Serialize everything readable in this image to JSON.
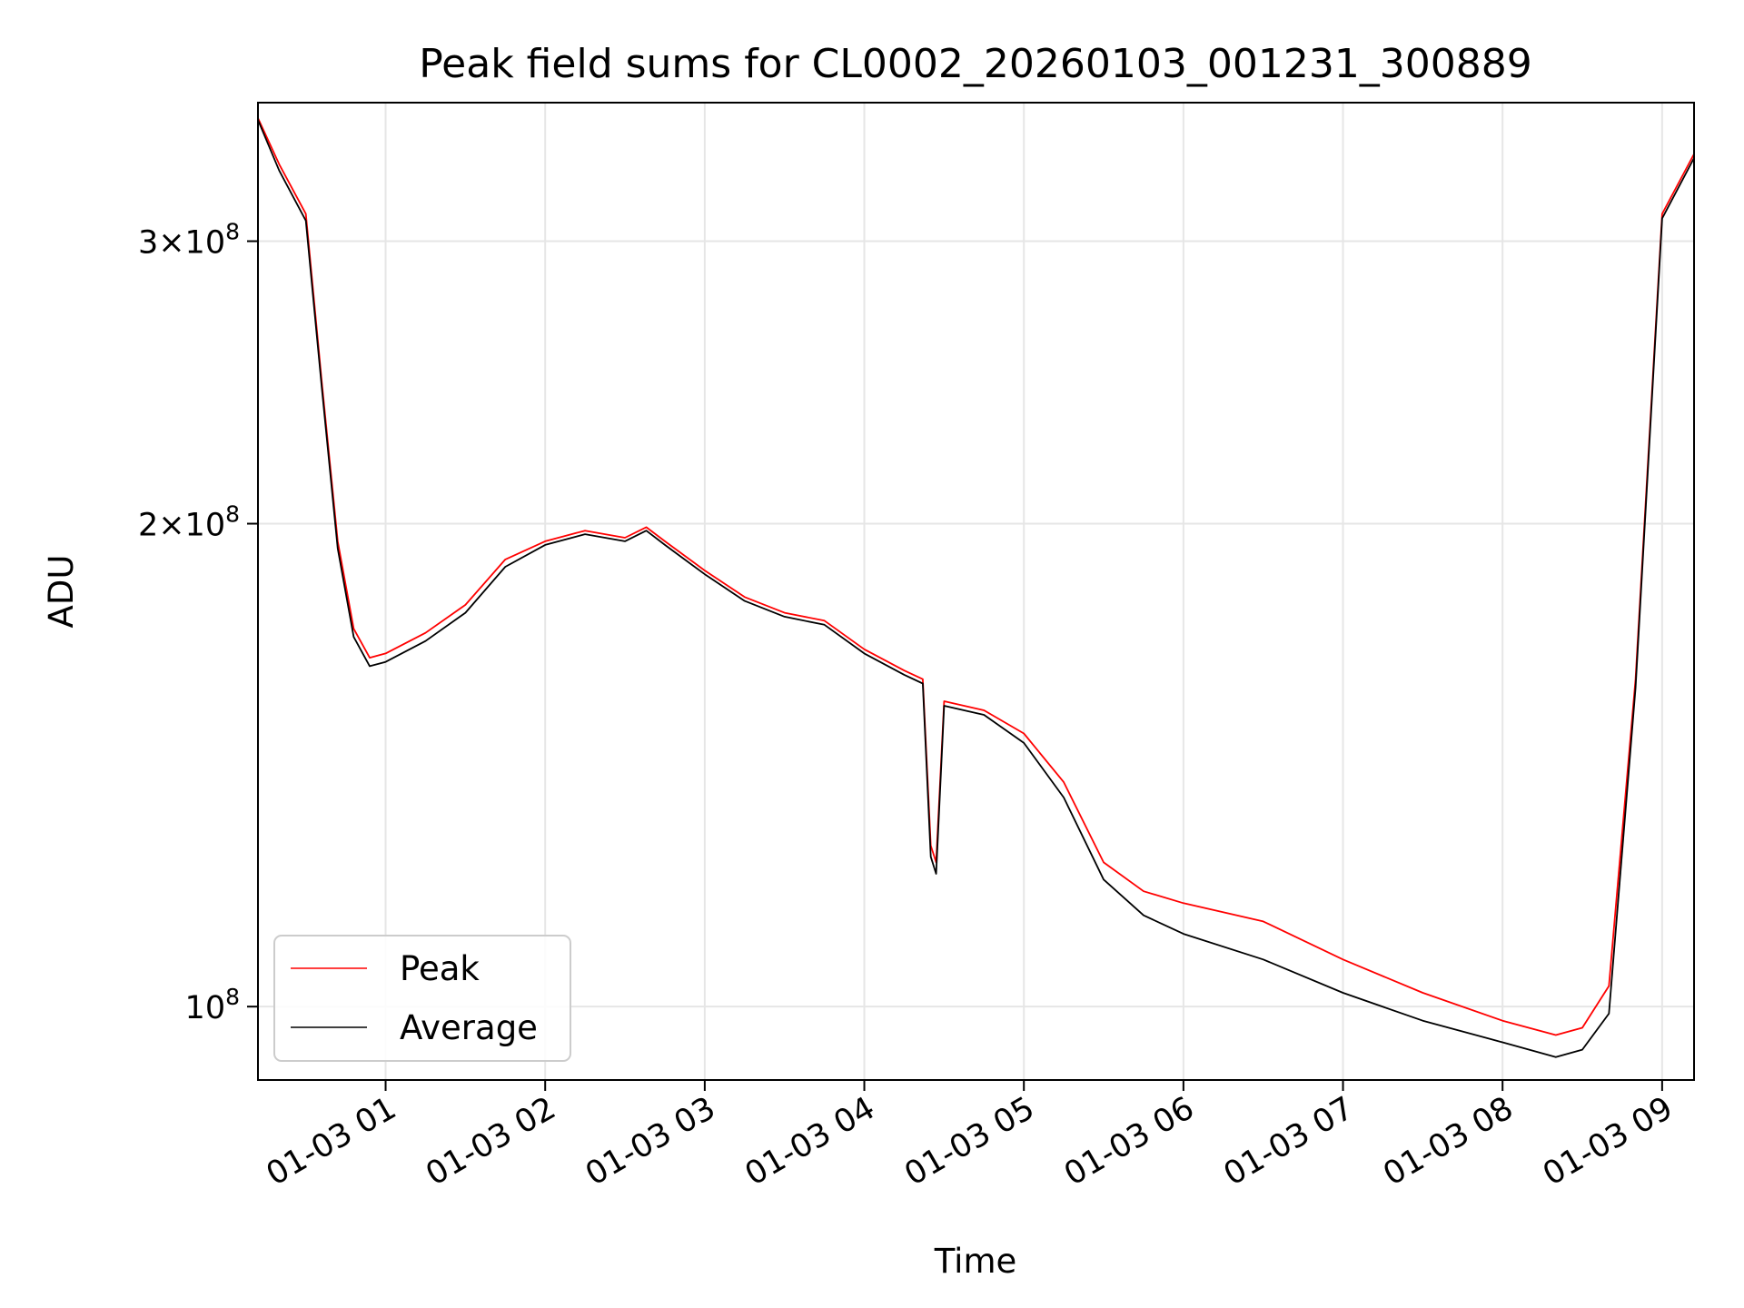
{
  "chart_data": {
    "type": "line",
    "title": "Peak field sums for CL0002_20260103_001231_300889",
    "xlabel": "Time",
    "ylabel": "ADU",
    "yscale": "log",
    "ylim": [
      90000000,
      366000000
    ],
    "xlim": [
      "01-03 00:12",
      "01-03 09:12"
    ],
    "grid": true,
    "legend_position": "lower left",
    "x_ticks": [
      "01-03 01",
      "01-03 02",
      "01-03 03",
      "01-03 04",
      "01-03 05",
      "01-03 06",
      "01-03 07",
      "01-03 08",
      "01-03 09"
    ],
    "y_ticks": [
      {
        "value": 100000000,
        "base": "10",
        "exp": "8"
      },
      {
        "value": 200000000,
        "mant": "2",
        "base": "10",
        "exp": "8"
      },
      {
        "value": 300000000,
        "mant": "3",
        "base": "10",
        "exp": "8"
      }
    ],
    "series": [
      {
        "name": "Peak",
        "color": "#ff0000",
        "x": [
          "01-03 00:12",
          "01-03 00:20",
          "01-03 00:30",
          "01-03 00:36",
          "01-03 00:42",
          "01-03 00:48",
          "01-03 00:54",
          "01-03 01:00",
          "01-03 01:15",
          "01-03 01:30",
          "01-03 01:45",
          "01-03 02:00",
          "01-03 02:15",
          "01-03 02:30",
          "01-03 02:38",
          "01-03 02:45",
          "01-03 03:00",
          "01-03 03:15",
          "01-03 03:30",
          "01-03 03:45",
          "01-03 04:00",
          "01-03 04:15",
          "01-03 04:22",
          "01-03 04:25",
          "01-03 04:27",
          "01-03 04:30",
          "01-03 04:45",
          "01-03 05:00",
          "01-03 05:15",
          "01-03 05:30",
          "01-03 05:45",
          "01-03 06:00",
          "01-03 06:30",
          "01-03 07:00",
          "01-03 07:30",
          "01-03 08:00",
          "01-03 08:20",
          "01-03 08:30",
          "01-03 08:40",
          "01-03 08:50",
          "01-03 09:00",
          "01-03 09:12"
        ],
        "values": [
          358000000,
          335000000,
          312000000,
          245000000,
          195000000,
          172000000,
          165000000,
          166000000,
          171000000,
          178000000,
          190000000,
          195000000,
          198000000,
          196000000,
          199000000,
          195000000,
          187000000,
          180000000,
          176000000,
          174000000,
          167000000,
          162000000,
          160000000,
          126000000,
          123000000,
          155000000,
          153000000,
          148000000,
          138000000,
          123000000,
          118000000,
          116000000,
          113000000,
          107000000,
          102000000,
          98000000,
          96000000,
          97000000,
          103000000,
          160000000,
          312000000,
          340000000
        ]
      },
      {
        "name": "Average",
        "color": "#000000",
        "x": [
          "01-03 00:12",
          "01-03 00:20",
          "01-03 00:30",
          "01-03 00:36",
          "01-03 00:42",
          "01-03 00:48",
          "01-03 00:54",
          "01-03 01:00",
          "01-03 01:15",
          "01-03 01:30",
          "01-03 01:45",
          "01-03 02:00",
          "01-03 02:15",
          "01-03 02:30",
          "01-03 02:38",
          "01-03 02:45",
          "01-03 03:00",
          "01-03 03:15",
          "01-03 03:30",
          "01-03 03:45",
          "01-03 04:00",
          "01-03 04:15",
          "01-03 04:22",
          "01-03 04:25",
          "01-03 04:27",
          "01-03 04:30",
          "01-03 04:45",
          "01-03 05:00",
          "01-03 05:15",
          "01-03 05:30",
          "01-03 05:45",
          "01-03 06:00",
          "01-03 06:30",
          "01-03 07:00",
          "01-03 07:30",
          "01-03 08:00",
          "01-03 08:20",
          "01-03 08:30",
          "01-03 08:40",
          "01-03 08:50",
          "01-03 09:00",
          "01-03 09:12"
        ],
        "values": [
          357000000,
          332000000,
          309000000,
          243000000,
          193000000,
          170000000,
          163000000,
          164000000,
          169000000,
          176000000,
          188000000,
          194000000,
          197000000,
          195000000,
          198000000,
          194000000,
          186000000,
          179000000,
          175000000,
          173000000,
          166000000,
          161000000,
          159000000,
          124000000,
          121000000,
          154000000,
          152000000,
          146000000,
          135000000,
          120000000,
          114000000,
          111000000,
          107000000,
          102000000,
          98000000,
          95000000,
          93000000,
          94000000,
          99000000,
          158000000,
          310000000,
          338000000
        ]
      }
    ]
  }
}
